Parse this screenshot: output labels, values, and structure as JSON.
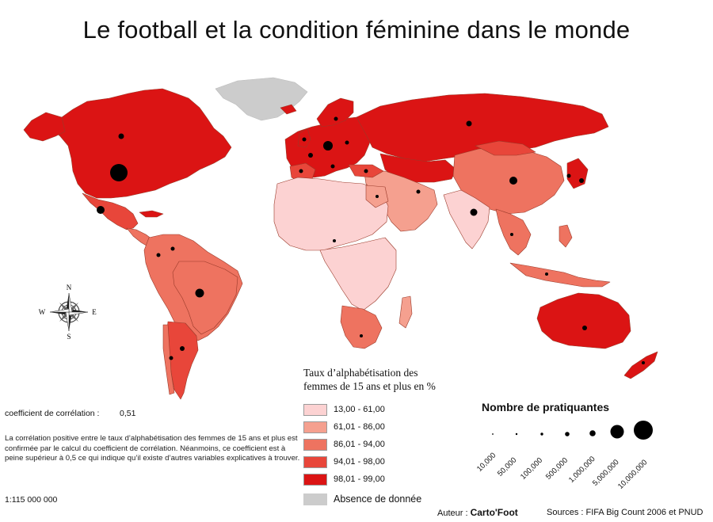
{
  "title": "Le football et la condition féminine dans le monde",
  "colors": {
    "class1": "#fcd2d2",
    "class2": "#f5a08f",
    "class3": "#ee7360",
    "class4": "#e8463a",
    "class5": "#db1414",
    "absent": "#cccccc",
    "border": "#9a3a2a",
    "dot": "#000000"
  },
  "legend_choropleth": {
    "title_line1": "Taux d’alphabétisation des",
    "title_line2": "femmes de 15 ans et plus en %",
    "classes": [
      {
        "label": "13,00 - 61,00",
        "color": "#fcd2d2"
      },
      {
        "label": "61,01 - 86,00",
        "color": "#f5a08f"
      },
      {
        "label": "86,01 - 94,00",
        "color": "#ee7360"
      },
      {
        "label": "94,01 - 98,00",
        "color": "#e8463a"
      },
      {
        "label": "98,01 - 99,00",
        "color": "#db1414"
      }
    ],
    "absent_label": "Absence de donnée"
  },
  "legend_bubbles": {
    "title": "Nombre de pratiquantes",
    "items": [
      "10,000",
      "50,000",
      "100,000",
      "500,000",
      "1,000,000",
      "5,000,000",
      "10,000,000"
    ]
  },
  "correlation": {
    "label": "coefficient de corrélation :",
    "value": "0,51"
  },
  "paragraph": "La corrélation positive entre le taux d’alphabétisation des femmes de 15 ans et plus est confirmée par le calcul du coefficient de corrélation. Néanmoins, ce coefficient est à peine supérieur à 0,5 ce qui indique qu’il existe  d’autres variables explicatives à trouver.",
  "scale": "1:115 000 000",
  "compass": {
    "n": "N",
    "s": "S",
    "e": "E",
    "w": "W"
  },
  "author_label": "Auteur :",
  "author_name": "Carto'Foot",
  "sources": "Sources : FIFA Big Count 2006 et PNUD"
}
